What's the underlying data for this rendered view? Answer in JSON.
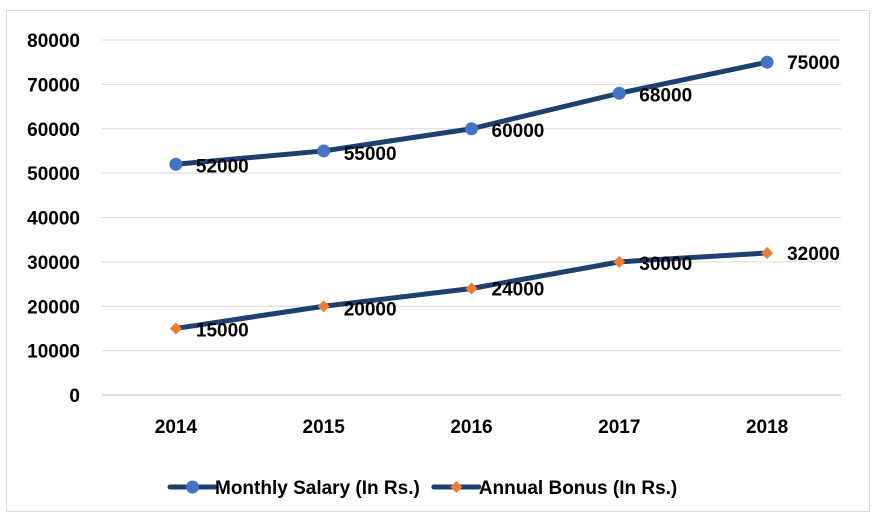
{
  "chart_data": {
    "type": "line",
    "title": "",
    "xlabel": "",
    "ylabel": "",
    "categories": [
      "2014",
      "2015",
      "2016",
      "2017",
      "2018"
    ],
    "ylim": [
      0,
      80000
    ],
    "yticks": [
      "0",
      "10000",
      "20000",
      "30000",
      "40000",
      "50000",
      "60000",
      "70000",
      "80000"
    ],
    "grid": true,
    "legend_position": "bottom",
    "series": [
      {
        "name": "Monthly Salary (In Rs.)",
        "values": [
          52000,
          55000,
          60000,
          68000,
          75000
        ],
        "labels": [
          "52000",
          "55000",
          "60000",
          "68000",
          "75000"
        ],
        "marker": "circle",
        "line_color": "#1f3f6e",
        "marker_color": "#4472c4"
      },
      {
        "name": "Annual Bonus (In Rs.)",
        "values": [
          15000,
          20000,
          24000,
          30000,
          32000
        ],
        "labels": [
          "15000",
          "20000",
          "24000",
          "30000",
          "32000"
        ],
        "marker": "diamond",
        "line_color": "#1f3f6e",
        "marker_color": "#ed7d31"
      }
    ]
  }
}
